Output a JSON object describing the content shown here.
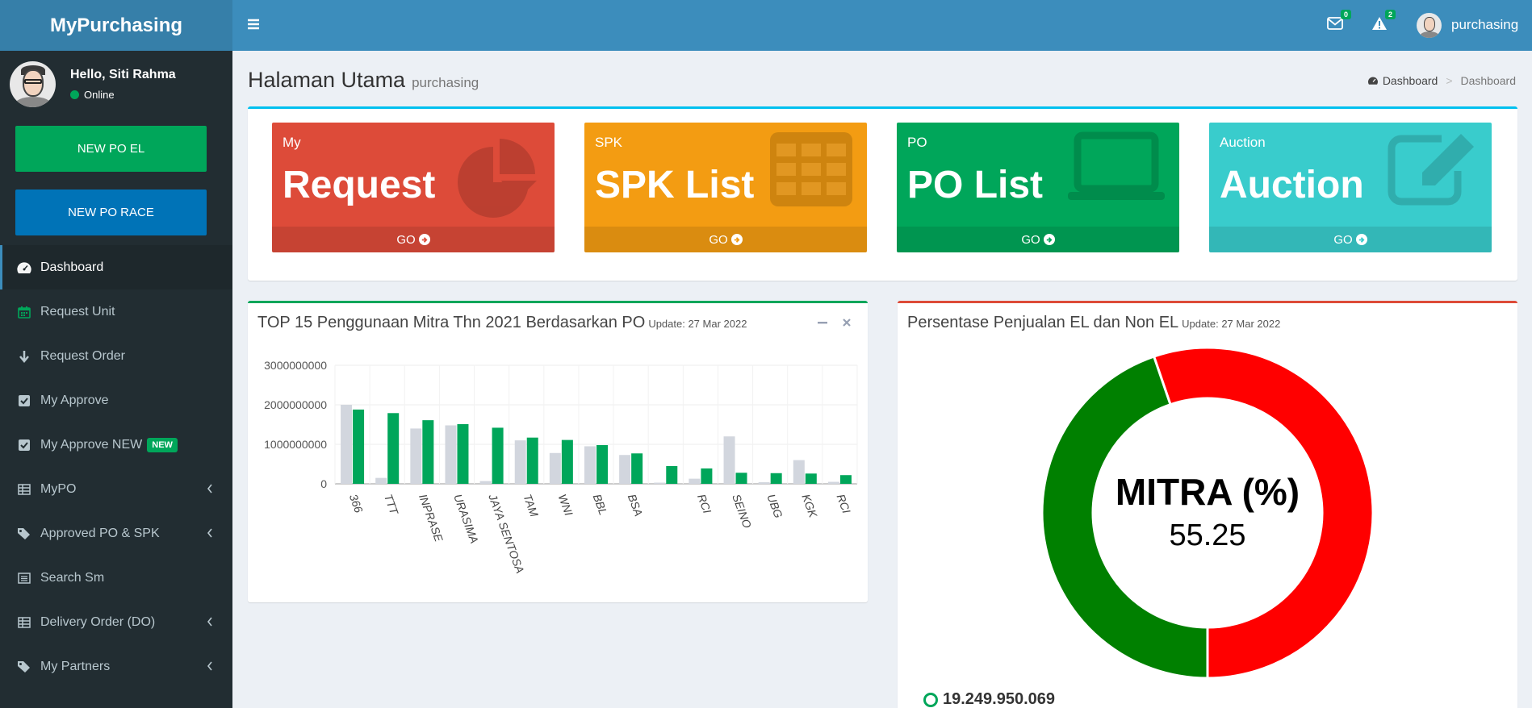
{
  "app": {
    "title": "MyPurchasing"
  },
  "user": {
    "greeting": "Hello, Siti Rahma",
    "status": "Online",
    "top_name": "purchasing"
  },
  "sidebar": {
    "buttons": [
      "NEW PO EL",
      "NEW PO RACE"
    ],
    "items": [
      {
        "label": "Dashboard",
        "icon": "dashboard-icon"
      },
      {
        "label": "Request Unit",
        "icon": "calendar-icon"
      },
      {
        "label": "Request Order",
        "icon": "arrow-down-icon"
      },
      {
        "label": "My Approve",
        "icon": "check-square-icon"
      },
      {
        "label": "My Approve NEW",
        "icon": "check-square-icon",
        "badge": "NEW"
      },
      {
        "label": "MyPO",
        "icon": "table-icon"
      },
      {
        "label": "Approved PO & SPK",
        "icon": "tags-icon"
      },
      {
        "label": "Search Sm",
        "icon": "list-icon"
      },
      {
        "label": "Delivery Order (DO)",
        "icon": "table-icon"
      },
      {
        "label": "My Partners",
        "icon": "tags-icon"
      }
    ]
  },
  "topbar": {
    "mail_count": "0",
    "alert_count": "2"
  },
  "page": {
    "title": "Halaman Utama",
    "subtitle": "purchasing"
  },
  "breadcrumb": [
    "Dashboard",
    "Dashboard"
  ],
  "tiles": [
    {
      "small": "My",
      "big": "Request",
      "footer": "GO",
      "color": "#dd4b39",
      "icon": "pie-chart-icon"
    },
    {
      "small": "SPK",
      "big": "SPK List",
      "footer": "GO",
      "color": "#f39c12",
      "icon": "table-grid-icon"
    },
    {
      "small": "PO",
      "big": "PO List",
      "footer": "GO",
      "color": "#00a65a",
      "icon": "laptop-icon"
    },
    {
      "small": "Auction",
      "big": "Auction",
      "footer": "GO",
      "color": "#39cccc",
      "icon": "edit-icon"
    }
  ],
  "bar_box": {
    "title": "TOP 15 Penggunaan Mitra Thn 2021 Berdasarkan PO",
    "update": "Update: 27 Mar 2022"
  },
  "donut_box": {
    "title": "Persentase Penjualan EL dan Non EL",
    "update": "Update: 27 Mar 2022",
    "legend_value": "19.249.950.069"
  },
  "chart_data": [
    {
      "type": "bar",
      "categories": [
        "366",
        "TTT",
        "INPRASE",
        "URASIMA",
        "JAYA SENTOSA",
        "TAM",
        "WNI",
        "BBL",
        "BSA",
        "",
        "RCI",
        "SEINO",
        "UBG",
        "KGK",
        "RCI"
      ],
      "series": [
        {
          "values": [
            2000000000,
            150000000,
            1400000000,
            1480000000,
            70000000,
            1100000000,
            780000000,
            950000000,
            730000000,
            30000000,
            130000000,
            1200000000,
            40000000,
            600000000,
            50000000
          ],
          "color": "#d2d6de"
        },
        {
          "values": [
            1880000000,
            1790000000,
            1610000000,
            1510000000,
            1420000000,
            1170000000,
            1110000000,
            980000000,
            770000000,
            450000000,
            390000000,
            280000000,
            270000000,
            260000000,
            220000000
          ],
          "color": "#00a65a"
        }
      ],
      "yticks": [
        "0",
        "1000000000",
        "2000000000",
        "3000000000"
      ],
      "ylim": [
        0,
        3000000000
      ]
    },
    {
      "type": "pie",
      "title": "MITRA (%)",
      "center_value": "55.25",
      "slices": [
        {
          "value": 55.25,
          "color": "#ff0000"
        },
        {
          "value": 44.75,
          "color": "#008000"
        }
      ]
    }
  ]
}
